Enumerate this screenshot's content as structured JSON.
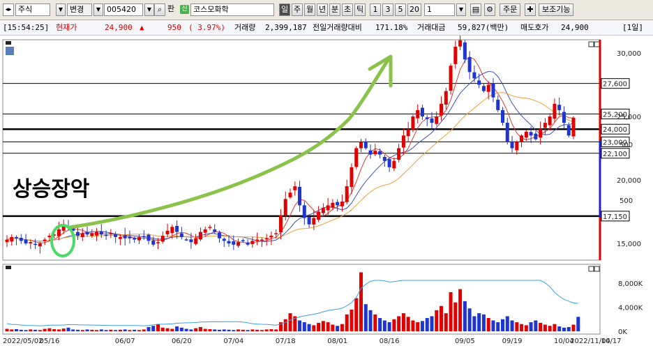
{
  "toolbar": {
    "market_select": "주식",
    "change_select": "변경",
    "code_input": "005420",
    "pan_label": "판",
    "shin_badge": "신",
    "stock_name": "코스모화학",
    "period_buttons": [
      "일",
      "주",
      "월",
      "년",
      "분",
      "초",
      "틱"
    ],
    "active_period": "일",
    "interval_buttons": [
      "1",
      "3",
      "5",
      "20"
    ],
    "interval_value": "1",
    "order_button": "주문",
    "indicator_button": "보조기능"
  },
  "info": {
    "time": "[15:54:25]",
    "price_label": "현재가",
    "price": "24,900",
    "up_symbol": "▲",
    "change": "950",
    "change_pct": "( 3.97%)",
    "volume_label": "거래량",
    "volume": "2,399,187",
    "prev_volume_ratio_label": "전일거래량대비",
    "prev_volume_ratio": "171.18%",
    "amount_label": "거래대금",
    "amount": "59,827(백만)",
    "ask_label": "매도호가",
    "ask": "24,900",
    "period_tag": "[1일]"
  },
  "annotation": {
    "text": "상승장악"
  },
  "price_axis": {
    "ticks": [
      "30,000",
      "25,000",
      "20,000",
      "15,000"
    ],
    "partial_ticks": [
      "500",
      "500"
    ],
    "level_labels": [
      "27,600",
      "25,200",
      "24,000",
      "23,000",
      "22,100",
      "17,150"
    ]
  },
  "volume_axis": {
    "ticks": [
      "8,000K",
      "4,000K",
      "0K"
    ]
  },
  "date_axis": {
    "labels": [
      "2022/05/02",
      "05/16",
      "06/07",
      "06/20",
      "07/04",
      "07/18",
      "08/01",
      "08/16",
      "09/05",
      "09/19",
      "10/04",
      "10/17",
      "2022/11/04"
    ]
  },
  "chart_data": {
    "type": "candlestick",
    "title": "코스모화학",
    "last_price": 24900,
    "y_ticks": [
      15000,
      20000,
      25000,
      30000
    ],
    "horizontal_levels": [
      27600,
      25200,
      24000,
      23000,
      22100,
      17150
    ],
    "x_labels": [
      "2022/05/02",
      "05/16",
      "06/07",
      "06/20",
      "07/04",
      "07/18",
      "08/01",
      "08/16",
      "09/05",
      "09/19",
      "10/04",
      "10/17",
      "2022/11/04"
    ],
    "close_approx": [
      15300,
      15500,
      15400,
      15200,
      15000,
      15100,
      14900,
      15000,
      15300,
      15600,
      15700,
      16100,
      16500,
      16300,
      16000,
      15600,
      15800,
      15700,
      15800,
      15900,
      15700,
      15600,
      15800,
      15500,
      15500,
      15400,
      15400,
      15300,
      15500,
      15500,
      15200,
      14900,
      15100,
      15600,
      16000,
      16300,
      15900,
      15500,
      15300,
      15100,
      15400,
      15900,
      16100,
      16300,
      15900,
      15400,
      15200,
      15000,
      14900,
      15100,
      15200,
      14900,
      15200,
      15300,
      15300,
      15400,
      15600,
      15800,
      17200,
      18500,
      19000,
      19500,
      18000,
      17000,
      16500,
      17000,
      17500,
      17800,
      18000,
      18200,
      18000,
      18300,
      19500,
      21000,
      22500,
      23000,
      22500,
      22000,
      22300,
      22000,
      21500,
      21000,
      21500,
      22500,
      23500,
      24000,
      25000,
      25500,
      25000,
      24800,
      24500,
      25000,
      26000,
      27000,
      29000,
      30500,
      31000,
      29500,
      28500,
      28000,
      27500,
      27000,
      27500,
      26500,
      25500,
      24500,
      23000,
      22500,
      23000,
      23500,
      23800,
      23500,
      23200,
      24000,
      24500,
      25000,
      26000,
      25500,
      24500,
      23500,
      24900
    ],
    "volume_k_approx": [
      400,
      300,
      350,
      250,
      200,
      300,
      250,
      200,
      400,
      500,
      350,
      300,
      450,
      600,
      300,
      250,
      200,
      300,
      250,
      200,
      300,
      200,
      250,
      200,
      250,
      300,
      200,
      250,
      200,
      300,
      700,
      900,
      1200,
      600,
      500,
      400,
      800,
      600,
      400,
      300,
      500,
      700,
      400,
      350,
      300,
      250,
      300,
      250,
      200,
      300,
      250,
      200,
      300,
      250,
      200,
      300,
      350,
      300,
      1500,
      2000,
      3000,
      2500,
      1800,
      1500,
      1200,
      1000,
      1400,
      1700,
      1500,
      1100,
      900,
      1200,
      2800,
      3600,
      5500,
      9800,
      4500,
      3500,
      2800,
      2200,
      1800,
      1500,
      2000,
      2500,
      3000,
      2400,
      1800,
      1500,
      1700,
      2200,
      2500,
      3500,
      4200,
      3000,
      6500,
      4800,
      7000,
      5000,
      3800,
      2500,
      3000,
      2800,
      2200,
      1800,
      1500,
      2000,
      2500,
      1800,
      1500,
      1200,
      1000,
      1500,
      1800,
      1400,
      1100,
      900,
      1200,
      800,
      600,
      700,
      1100,
      2400
    ],
    "volume_line_visible": true,
    "moving_averages": [
      "red",
      "blue",
      "orange"
    ]
  }
}
